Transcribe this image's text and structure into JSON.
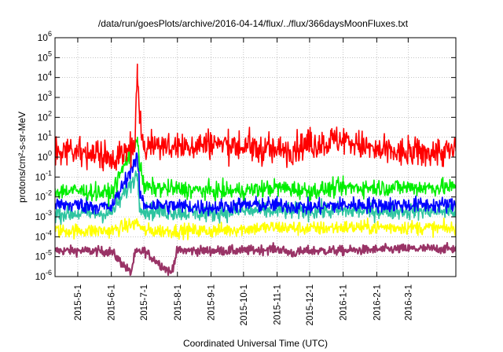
{
  "chart_data": {
    "type": "line",
    "title": "/data/run/goesPlots/archive/2016-04-14/flux/../flux/366daysMoonFluxes.txt",
    "xlabel": "Coordinated Universal Time (UTC)",
    "ylabel": "protons/cm²-s-sr-MeV",
    "xlim": [
      "2015-04-10",
      "2016-04-14"
    ],
    "ylim": [
      1e-06,
      1000000.0
    ],
    "yscale": "log",
    "grid": true,
    "legend": "none",
    "x_ticks": [
      "2015-5-1",
      "2015-6-1",
      "2015-7-1",
      "2015-8-1",
      "2015-9-1",
      "2015-10-1",
      "2015-11-1",
      "2015-12-1",
      "2016-1-1",
      "2016-2-1",
      "2016-3-1"
    ],
    "y_ticks": [
      {
        "base": "10",
        "exp": "-6",
        "value": 1e-06
      },
      {
        "base": "10",
        "exp": "-5",
        "value": 1e-05
      },
      {
        "base": "10",
        "exp": "-4",
        "value": 0.0001
      },
      {
        "base": "10",
        "exp": "-3",
        "value": 0.001
      },
      {
        "base": "10",
        "exp": "-2",
        "value": 0.01
      },
      {
        "base": "10",
        "exp": "-1",
        "value": 0.1
      },
      {
        "base": "10",
        "exp": "0",
        "value": 1
      },
      {
        "base": "10",
        "exp": "1",
        "value": 10
      },
      {
        "base": "10",
        "exp": "2",
        "value": 100
      },
      {
        "base": "10",
        "exp": "3",
        "value": 1000
      },
      {
        "base": "10",
        "exp": "4",
        "value": 10000
      },
      {
        "base": "10",
        "exp": "5",
        "value": 100000
      },
      {
        "base": "10",
        "exp": "6",
        "value": 1000000
      }
    ],
    "series": [
      {
        "color": "#993366",
        "points": [
          [
            "2015-04-10",
            2e-05
          ],
          [
            "2015-05-01",
            2e-05
          ],
          [
            "2015-06-01",
            1.8e-05
          ],
          [
            "2015-06-19",
            1.5e-06
          ],
          [
            "2015-06-23",
            1.5e-05
          ],
          [
            "2015-07-01",
            2e-05
          ],
          [
            "2015-07-26",
            1.5e-06
          ],
          [
            "2015-08-01",
            2e-05
          ],
          [
            "2015-10-01",
            2e-05
          ],
          [
            "2015-11-01",
            2.5e-05
          ],
          [
            "2015-11-15",
            1.5e-05
          ],
          [
            "2015-12-01",
            2e-05
          ],
          [
            "2016-01-01",
            2e-05
          ],
          [
            "2016-03-01",
            2.5e-05
          ],
          [
            "2016-04-14",
            2.5e-05
          ]
        ]
      },
      {
        "color": "#ffff00",
        "points": [
          [
            "2015-04-10",
            0.0002
          ],
          [
            "2015-05-01",
            0.0002
          ],
          [
            "2015-06-01",
            0.0002
          ],
          [
            "2015-06-25",
            0.0005
          ],
          [
            "2015-07-01",
            0.0002
          ],
          [
            "2015-09-01",
            0.0002
          ],
          [
            "2015-10-01",
            0.00025
          ],
          [
            "2015-11-01",
            0.0003
          ],
          [
            "2015-12-01",
            0.00025
          ],
          [
            "2016-01-01",
            0.0003
          ],
          [
            "2016-03-01",
            0.0003
          ],
          [
            "2016-04-14",
            0.00025
          ]
        ]
      },
      {
        "color": "#2ec4a0",
        "points": [
          [
            "2015-04-10",
            0.0015
          ],
          [
            "2015-05-01",
            0.0015
          ],
          [
            "2015-06-01",
            0.0015
          ],
          [
            "2015-06-25",
            0.15
          ],
          [
            "2015-06-27",
            0.005
          ],
          [
            "2015-07-01",
            0.002
          ],
          [
            "2015-09-01",
            0.0015
          ],
          [
            "2015-10-01",
            0.002
          ],
          [
            "2015-11-01",
            0.002
          ],
          [
            "2015-12-01",
            0.002
          ],
          [
            "2016-01-01",
            0.002
          ],
          [
            "2016-03-01",
            0.002
          ],
          [
            "2016-04-14",
            0.002
          ]
        ]
      },
      {
        "color": "#0000ff",
        "points": [
          [
            "2015-04-10",
            0.004
          ],
          [
            "2015-05-01",
            0.004
          ],
          [
            "2015-06-01",
            0.003
          ],
          [
            "2015-06-25",
            1
          ],
          [
            "2015-06-27",
            0.02
          ],
          [
            "2015-07-01",
            0.004
          ],
          [
            "2015-09-01",
            0.003
          ],
          [
            "2015-10-01",
            0.004
          ],
          [
            "2015-11-01",
            0.004
          ],
          [
            "2015-12-01",
            0.003
          ],
          [
            "2016-01-01",
            0.004
          ],
          [
            "2016-03-01",
            0.004
          ],
          [
            "2016-04-14",
            0.004
          ]
        ]
      },
      {
        "color": "#00ee00",
        "points": [
          [
            "2015-04-10",
            0.02
          ],
          [
            "2015-05-01",
            0.02
          ],
          [
            "2015-06-01",
            0.015
          ],
          [
            "2015-06-25",
            10
          ],
          [
            "2015-06-27",
            0.5
          ],
          [
            "2015-07-01",
            0.03
          ],
          [
            "2015-09-01",
            0.02
          ],
          [
            "2015-10-01",
            0.02
          ],
          [
            "2015-11-01",
            0.03
          ],
          [
            "2015-12-01",
            0.02
          ],
          [
            "2016-01-01",
            0.03
          ],
          [
            "2016-03-01",
            0.03
          ],
          [
            "2016-04-14",
            0.03
          ]
        ]
      },
      {
        "color": "#ff0000",
        "points": [
          [
            "2015-04-10",
            1.5
          ],
          [
            "2015-05-01",
            2
          ],
          [
            "2015-06-01",
            1
          ],
          [
            "2015-06-22",
            2
          ],
          [
            "2015-06-25",
            10000
          ],
          [
            "2015-06-27",
            50
          ],
          [
            "2015-07-01",
            5
          ],
          [
            "2015-08-01",
            3
          ],
          [
            "2015-09-01",
            5
          ],
          [
            "2015-10-01",
            3
          ],
          [
            "2015-11-01",
            2
          ],
          [
            "2015-12-01",
            4
          ],
          [
            "2016-01-01",
            8
          ],
          [
            "2016-02-01",
            2
          ],
          [
            "2016-03-01",
            1.5
          ],
          [
            "2016-04-14",
            2
          ]
        ]
      }
    ]
  }
}
